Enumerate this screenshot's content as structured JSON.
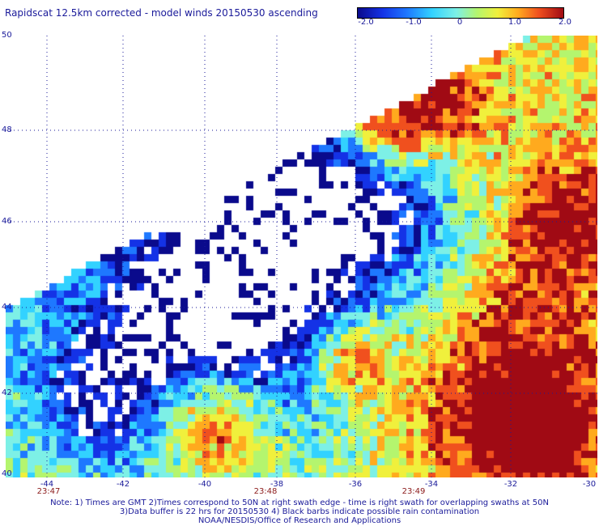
{
  "title": "Rapidscat 12.5km corrected - model winds 20150530 ascending",
  "colorbar": {
    "labels": [
      "-2.0",
      "-1.0",
      "0",
      "1.0",
      "2.0"
    ],
    "values": [
      -2.0,
      -1.0,
      0,
      1.0,
      2.0
    ],
    "range": [
      -2.0,
      2.0
    ],
    "colors": [
      "#0a0a8c",
      "#1432e6",
      "#1e78ff",
      "#32d2ff",
      "#7df0e6",
      "#b4f56e",
      "#f0f03c",
      "#ffaa1e",
      "#f0501e",
      "#a00a14"
    ]
  },
  "map": {
    "lat_labels": [
      "50",
      "48",
      "46",
      "44",
      "42",
      "40"
    ],
    "lat_values": [
      50,
      48,
      46,
      44,
      42,
      40
    ],
    "lon_labels": [
      "-44",
      "-42",
      "-40",
      "-38",
      "-36",
      "-34",
      "-32",
      "-30"
    ],
    "lon_values": [
      -44,
      -42,
      -40,
      -38,
      -36,
      -34,
      -32,
      -30
    ],
    "lon_range": [
      -44.7,
      -30
    ],
    "lat_range": [
      40,
      50
    ],
    "time_labels": [
      {
        "text": "23:47",
        "lon": -44
      },
      {
        "text": "23:48",
        "lon": -38
      },
      {
        "text": "23:49",
        "lon": -34.5
      }
    ],
    "grid": "dotted",
    "missing_data_color": "#ffffff"
  },
  "notes": [
    "Note: 1) Times are GMT 2)Times correspond to 50N at right swath edge - time is right swath for overlapping swaths at 50N",
    "3)Data buffer is 22 hrs for 20150530 4) Black barbs indicate possible rain contamination",
    "NOAA/NESDIS/Office of Research and Applications"
  ]
}
